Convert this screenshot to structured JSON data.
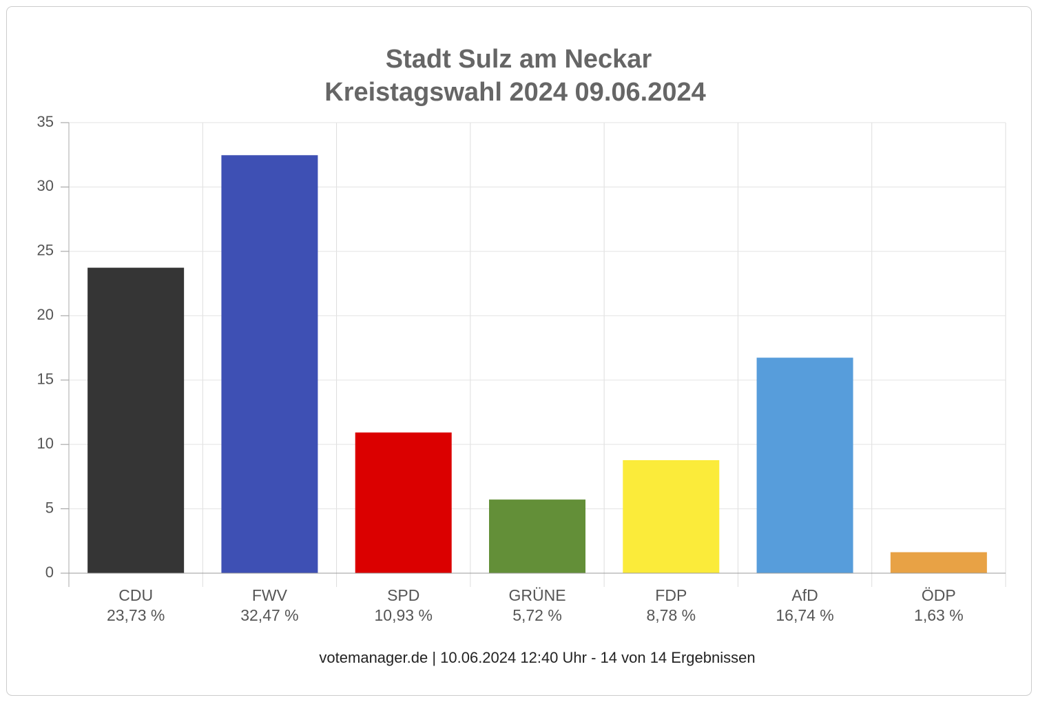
{
  "chart_data": {
    "type": "bar",
    "title": "Stadt Sulz am Neckar",
    "subtitle": "Kreistagswahl 2024 09.06.2024",
    "categories": [
      "CDU",
      "FWV",
      "SPD",
      "GRÜNE",
      "FDP",
      "AfD",
      "ÖDP"
    ],
    "values": [
      23.73,
      32.47,
      10.93,
      5.72,
      8.78,
      16.74,
      1.63
    ],
    "value_labels": [
      "23,73 %",
      "32,47 %",
      "10,93 %",
      "5,72 %",
      "8,78 %",
      "16,74 %",
      "1,63 %"
    ],
    "colors": [
      "#353535",
      "#3e50b4",
      "#db0000",
      "#638f38",
      "#fbeb3a",
      "#579ddb",
      "#e8a245"
    ],
    "ylim": [
      0,
      35
    ],
    "yticks": [
      0,
      5,
      10,
      15,
      20,
      25,
      30,
      35
    ],
    "grid": true,
    "source": "votemanager.de | 10.06.2024 12:40 Uhr - 14 von 14 Ergebnissen"
  }
}
